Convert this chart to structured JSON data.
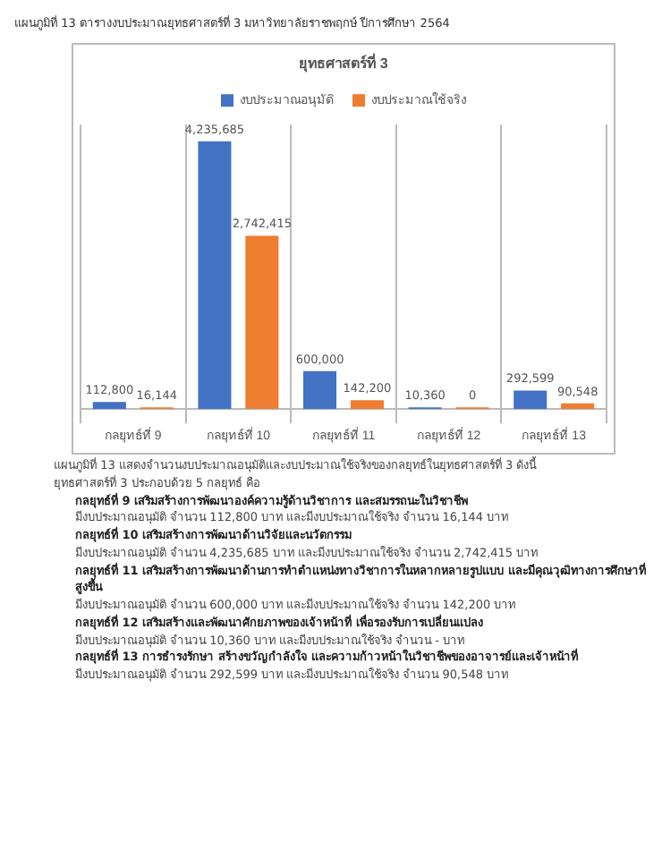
{
  "chart_data": {
    "type": "bar",
    "title": "ยุทธศาสตร์ที่ 3",
    "categories": [
      "กลยุทธ์ที่ 9",
      "กลยุทธ์ที่ 10",
      "กลยุทธ์ที่ 11",
      "กลยุทธ์ที่ 12",
      "กลยุทธ์ที่ 13"
    ],
    "series": [
      {
        "name": "งบประมาณอนุมัติ",
        "color": "#4472c4",
        "values": [
          112800,
          4235685,
          600000,
          10360,
          292599
        ],
        "value_labels": [
          "112,800",
          "4,235,685",
          "600,000",
          "10,360",
          "292,599"
        ]
      },
      {
        "name": "งบประมาณใช้จริง",
        "color": "#ed7d31",
        "values": [
          16144,
          2742415,
          142200,
          0,
          90548
        ],
        "value_labels": [
          "16,144",
          "2,742,415",
          "142,200",
          "0",
          "90,548"
        ]
      }
    ],
    "legend": "top",
    "grid": "x",
    "annotations": [
      "แผนภูมิที่ 13 ตารางงบประมาณยุทธศาสตร์ที่ 3 มหาวิทยาลัยราชพฤกษ์ ปีการศึกษา 2564",
      "แผนภูมิที่ 13 แสดงจำนวนงบประมาณอนุมัติและงบประมาณใช้จริงของกลยุทธ์ในยุทธศาสตร์ที่ 3 ดังนี้",
      "ยุทธศาสตร์ที่ 3 ประกอบด้วย 5 กลยุทธ์ คือ",
      "กลยุทธ์ที่ 9 เสริมสร้างการพัฒนาองค์ความรู้ด้านวิชาการ และสมรรถนะในวิชาชีพ",
      "มีงบประมาณอนุมัติ จำนวน 112,800 บาท และมีงบประมาณใช้จริง จำนวน 16,144 บาท",
      "กลยุทธ์ที่ 10 เสริมสร้างการพัฒนาด้านวิจัยและนวัตกรรม",
      "มีงบประมาณอนุมัติ จำนวน 4,235,685 บาท และมีงบประมาณใช้จริง จำนวน 2,742,415 บาท",
      "กลยุทธ์ที่ 11 เสริมสร้างการพัฒนาด้านการทำตำแหน่งทางวิชาการในหลากหลายรูปแบบ และมีคุณวุฒิทางการศึกษาที่สูงขึ้น",
      "มีงบประมาณอนุมัติ จำนวน 600,000 บาท และมีงบประมาณใช้จริง จำนวน 142,200 บาท",
      "กลยุทธ์ที่ 12 เสริมสร้างและพัฒนาศักยภาพของเจ้าหน้าที่ เพื่อรองรับการเปลี่ยนแปลง",
      "มีงบประมาณอนุมัติ จำนวน 10,360 บาท และมีงบประมาณใช้จริง จำนวน - บาท",
      "กลยุทธ์ที่ 13 การธำรงรักษา สร้างขวัญกำลังใจ และความก้าวหน้าในวิชาชีพของอาจารย์และเจ้าหน้าที่",
      "มีงบประมาณอนุมัติ จำนวน 292,599 บาท และมีงบประมาณใช้จริง จำนวน 90,548 บาท"
    ]
  }
}
